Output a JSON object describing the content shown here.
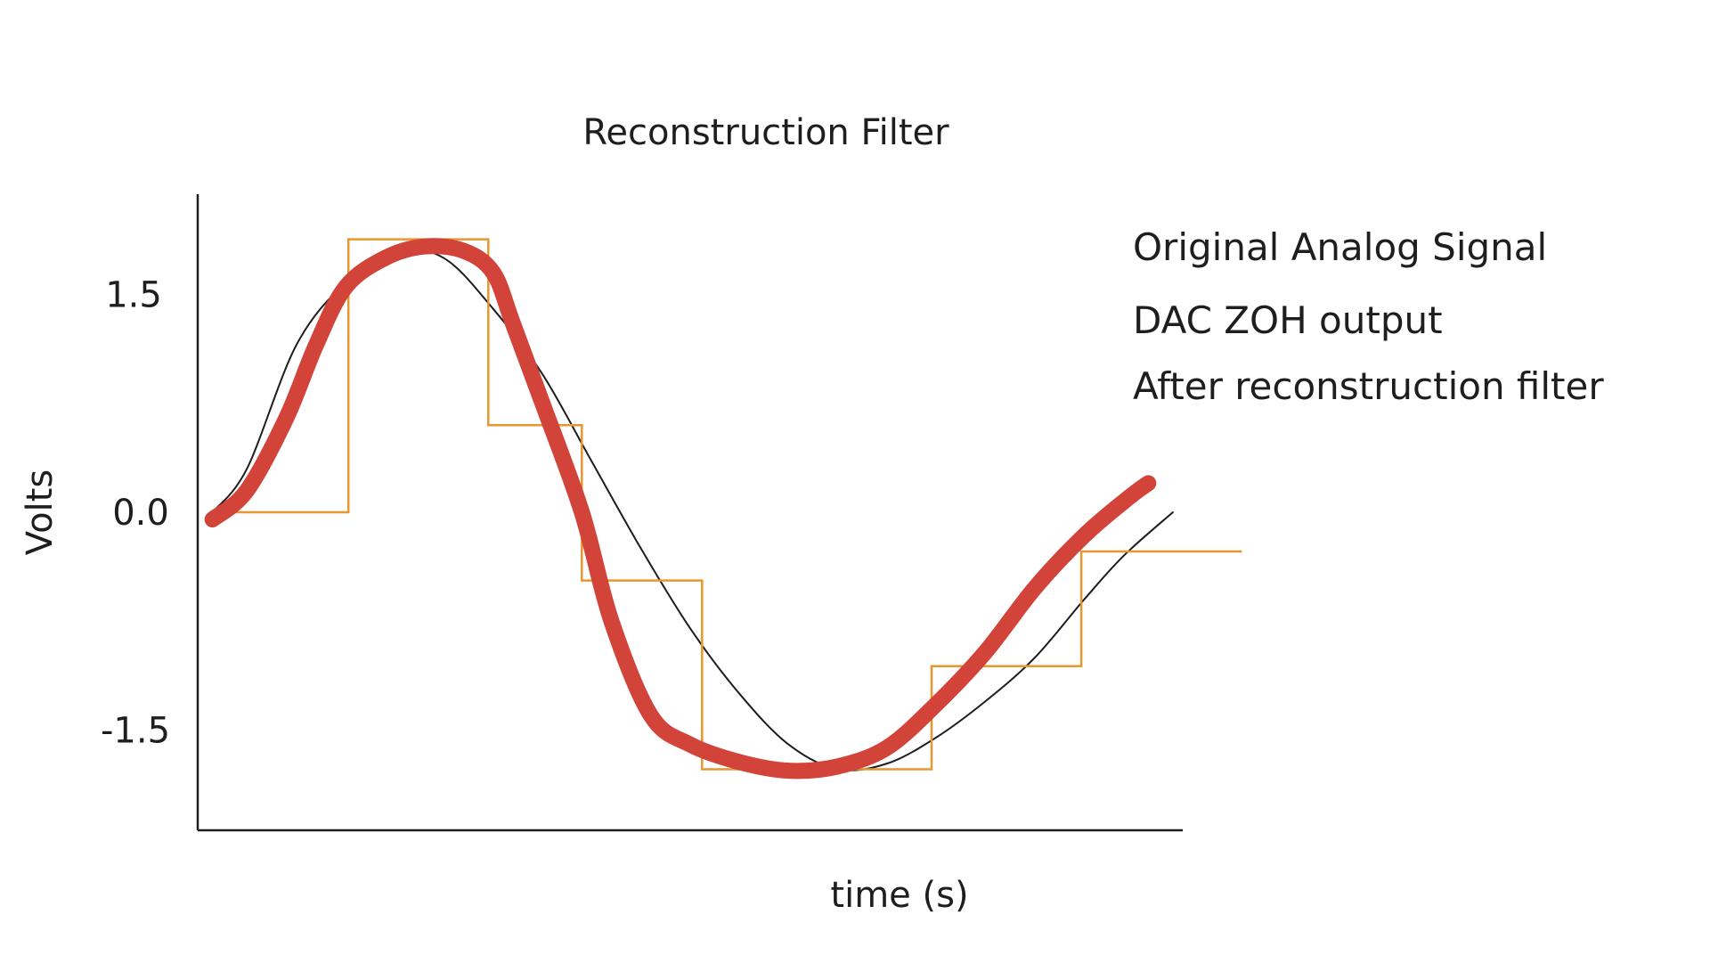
{
  "chart_data": {
    "type": "line",
    "title": "Reconstruction Filter",
    "xlabel": "time (s)",
    "ylabel": "Volts",
    "y_ticks": [
      {
        "value": 1.5,
        "label": "1.5"
      },
      {
        "value": 0.0,
        "label": "0.0"
      },
      {
        "value": -1.5,
        "label": "-1.5"
      }
    ],
    "xlim": [
      0,
      10
    ],
    "ylim": [
      -2.2,
      2.2
    ],
    "grid": false,
    "legend_position": "top-right",
    "series": [
      {
        "name": "Original Analog Signal",
        "color": "#1e1e1e",
        "style": "thin-line",
        "x": [
          0.15,
          0.5,
          1.0,
          1.5,
          2.0,
          2.5,
          3.0,
          3.5,
          4.0,
          4.5,
          5.0,
          5.5,
          6.0,
          6.5,
          7.0,
          7.5,
          8.0,
          8.5,
          9.0,
          9.4,
          9.9
        ],
        "y": [
          0.0,
          0.3,
          1.15,
          1.58,
          1.8,
          1.75,
          1.4,
          0.95,
          0.35,
          -0.25,
          -0.8,
          -1.25,
          -1.6,
          -1.77,
          -1.73,
          -1.55,
          -1.3,
          -1.0,
          -0.6,
          -0.3,
          0.0
        ]
      },
      {
        "name": "DAC ZOH output",
        "color": "#e8962e",
        "style": "step",
        "x": [
          0.15,
          1.53,
          2.95,
          3.9,
          5.12,
          7.45,
          8.97,
          10.6
        ],
        "y": [
          0.0,
          1.88,
          0.6,
          -0.47,
          -1.77,
          -1.06,
          -0.27,
          -0.27
        ]
      },
      {
        "name": "After reconstruction filter",
        "color": "#d2443a",
        "style": "thick-line",
        "x": [
          0.15,
          0.5,
          0.9,
          1.2,
          1.5,
          1.9,
          2.3,
          2.7,
          3.0,
          3.2,
          3.5,
          3.9,
          4.2,
          4.6,
          5.0,
          5.5,
          6.0,
          6.5,
          7.0,
          7.5,
          8.0,
          8.5,
          9.0,
          9.45,
          9.65
        ],
        "y": [
          -0.05,
          0.15,
          0.65,
          1.15,
          1.55,
          1.75,
          1.83,
          1.8,
          1.65,
          1.3,
          0.75,
          0.0,
          -0.75,
          -1.4,
          -1.6,
          -1.72,
          -1.78,
          -1.75,
          -1.62,
          -1.32,
          -0.96,
          -0.52,
          -0.16,
          0.1,
          0.2
        ]
      }
    ]
  }
}
